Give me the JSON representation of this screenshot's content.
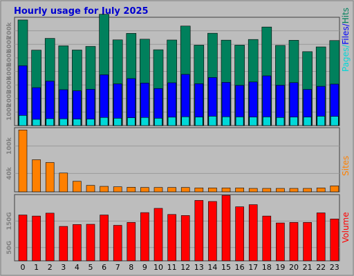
{
  "title": "Hourly usage for July 2025",
  "colors": {
    "background": "#bdbdbd",
    "title": "#0000d0",
    "hits": "#00805c",
    "files": "#0000ff",
    "pages": "#00d8d8",
    "sites": "#ff8000",
    "volume": "#ff0000"
  },
  "chart_data": [
    {
      "type": "bar",
      "title": "Hourly usage for July 2025",
      "ylabel": "Pages/Files/Hits",
      "categories": [
        "0",
        "1",
        "2",
        "3",
        "4",
        "5",
        "6",
        "7",
        "8",
        "9",
        "10",
        "11",
        "12",
        "13",
        "14",
        "15",
        "16",
        "17",
        "18",
        "19",
        "20",
        "21",
        "22",
        "23"
      ],
      "yticks": [
        {
          "value": 100000,
          "label": "100k"
        },
        {
          "value": 200000,
          "label": "200k"
        },
        {
          "value": 300000,
          "label": "300k"
        },
        {
          "value": 400000,
          "label": "400k"
        },
        {
          "value": 500000,
          "label": "500k"
        },
        {
          "value": 600000,
          "label": "600k"
        },
        {
          "value": 700000,
          "label": "700k"
        }
      ],
      "ylim": [
        0,
        800000
      ],
      "grid": true,
      "series": [
        {
          "name": "Hits",
          "values": [
            780000,
            557000,
            644000,
            589000,
            558000,
            585000,
            822000,
            633000,
            681000,
            638000,
            560000,
            632000,
            735000,
            594000,
            682000,
            631000,
            594000,
            636000,
            728000,
            592000,
            630000,
            546000,
            581000,
            628000
          ]
        },
        {
          "name": "Files",
          "values": [
            442000,
            280000,
            328000,
            265000,
            257000,
            268000,
            375000,
            308000,
            347000,
            314000,
            274000,
            316000,
            378000,
            309000,
            355000,
            319000,
            297000,
            322000,
            367000,
            298000,
            317000,
            267000,
            290000,
            306000
          ]
        },
        {
          "name": "Pages",
          "values": [
            75000,
            46000,
            51000,
            50000,
            48000,
            48000,
            60000,
            54000,
            58000,
            60000,
            54000,
            62000,
            65000,
            63000,
            69000,
            65000,
            64000,
            63000,
            64000,
            60000,
            63000,
            63000,
            69000,
            68000
          ]
        }
      ]
    },
    {
      "type": "bar",
      "ylabel": "Sites",
      "categories": [
        "0",
        "1",
        "2",
        "3",
        "4",
        "5",
        "6",
        "7",
        "8",
        "9",
        "10",
        "11",
        "12",
        "13",
        "14",
        "15",
        "16",
        "17",
        "18",
        "19",
        "20",
        "21",
        "22",
        "23"
      ],
      "yticks": [
        {
          "value": 40000,
          "label": "40k"
        },
        {
          "value": 100000,
          "label": "100k"
        }
      ],
      "ylim": [
        0,
        140000
      ],
      "grid": true,
      "series": [
        {
          "name": "Sites",
          "values": [
            135000,
            70000,
            64000,
            41000,
            23000,
            14000,
            12000,
            11000,
            10000,
            9500,
            9500,
            9500,
            9500,
            8500,
            8500,
            8500,
            8500,
            7500,
            7500,
            7500,
            7500,
            7500,
            8500,
            13000
          ]
        }
      ]
    },
    {
      "type": "bar",
      "ylabel": "Volume",
      "categories": [
        "0",
        "1",
        "2",
        "3",
        "4",
        "5",
        "6",
        "7",
        "8",
        "9",
        "10",
        "11",
        "12",
        "13",
        "14",
        "15",
        "16",
        "17",
        "18",
        "19",
        "20",
        "21",
        "22",
        "23"
      ],
      "yticks": [
        {
          "value": 50,
          "label": "50G"
        },
        {
          "value": 150,
          "label": "150G"
        }
      ],
      "ylim": [
        0,
        250
      ],
      "grid": true,
      "series": [
        {
          "name": "Volume",
          "values": [
            173,
            169,
            180,
            130,
            137,
            138,
            173,
            134,
            145,
            182,
            198,
            175,
            171,
            228,
            224,
            247,
            204,
            212,
            169,
            143,
            145,
            145,
            181,
            158
          ]
        }
      ]
    }
  ]
}
